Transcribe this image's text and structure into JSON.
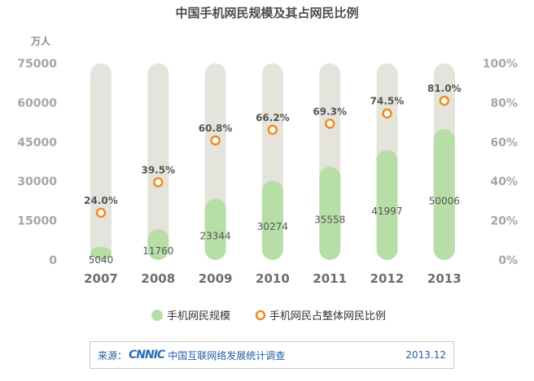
{
  "chart_data": {
    "type": "bar",
    "title": "中国手机网民规模及其占网民比例",
    "left_axis_unit": "万人",
    "categories": [
      "2007",
      "2008",
      "2009",
      "2010",
      "2011",
      "2012",
      "2013"
    ],
    "series": [
      {
        "name": "手机网民规模",
        "kind": "bar",
        "axis": "left",
        "values": [
          5040,
          11760,
          23344,
          30274,
          35558,
          41997,
          50006
        ],
        "color": "#b8dea7"
      },
      {
        "name": "手机网民占整体网民比例",
        "kind": "point",
        "axis": "right",
        "values": [
          24.0,
          39.5,
          60.8,
          66.2,
          69.3,
          74.5,
          81.0
        ],
        "labels": [
          "24.0%",
          "39.5%",
          "60.8%",
          "66.2%",
          "69.3%",
          "74.5%",
          "81.0%"
        ],
        "color": "#f08c1e"
      }
    ],
    "ylim": [
      0,
      75000
    ],
    "y_ticks": [
      "0",
      "15000",
      "30000",
      "45000",
      "60000",
      "75000"
    ],
    "y2lim": [
      0,
      100
    ],
    "y2_ticks": [
      "0%",
      "20%",
      "40%",
      "60%",
      "80%",
      "100%"
    ],
    "bar_background_color": "#e5e4dc",
    "legend_position": "bottom",
    "grid": false
  },
  "source": {
    "label": "来源：",
    "logo_text": "CNNIC",
    "title": "中国互联网络发展统计调查",
    "date": "2013.12"
  }
}
